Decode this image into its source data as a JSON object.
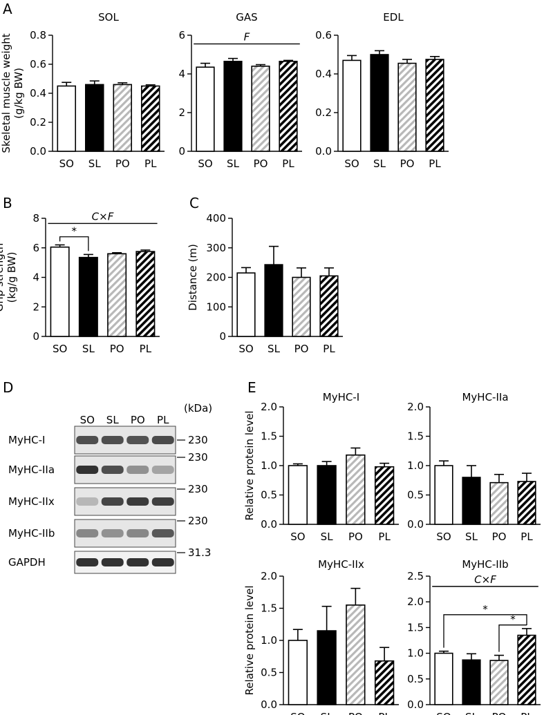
{
  "panel_labels": {
    "A": "A",
    "B": "B",
    "C": "C",
    "D": "D",
    "E": "E"
  },
  "colors": {
    "SO": "#ffffff",
    "SL": "#000000",
    "PO": "hatched-light-gray",
    "PL": "hatched-black"
  },
  "blot": {
    "lanes": [
      "SO",
      "SL",
      "PO",
      "PL"
    ],
    "unit": "(kDa)",
    "rows": [
      {
        "name": "MyHC-I",
        "marker": "230",
        "intensity": [
          0.8,
          0.8,
          0.78,
          0.82
        ]
      },
      {
        "name": "MyHC-IIa",
        "marker": "230",
        "intensity": [
          0.95,
          0.8,
          0.45,
          0.35
        ]
      },
      {
        "name": "MyHC-IIx",
        "marker": "230",
        "intensity": [
          0.25,
          0.85,
          0.9,
          0.88
        ]
      },
      {
        "name": "MyHC-IIb",
        "marker": "230",
        "intensity": [
          0.5,
          0.45,
          0.5,
          0.75
        ]
      },
      {
        "name": "GAPDH",
        "marker": "31.3",
        "intensity": [
          0.95,
          0.95,
          0.95,
          0.95
        ]
      }
    ]
  },
  "chart_data": [
    {
      "id": "A1",
      "type": "bar",
      "title": "SOL",
      "ylabel": "Skeletal muscle weight\n(g/kg BW)",
      "categories": [
        "SO",
        "SL",
        "PO",
        "PL"
      ],
      "values": [
        0.45,
        0.46,
        0.46,
        0.45
      ],
      "errors": [
        0.025,
        0.025,
        0.012,
        0.008
      ],
      "ylim": [
        0,
        0.8
      ],
      "yticks": [
        "0.0",
        "0.2",
        "0.4",
        "0.6",
        "0.8"
      ],
      "annotations": []
    },
    {
      "id": "A2",
      "type": "bar",
      "title": "GAS",
      "ylabel": "",
      "categories": [
        "SO",
        "SL",
        "PO",
        "PL"
      ],
      "values": [
        4.35,
        4.65,
        4.4,
        4.65
      ],
      "errors": [
        0.2,
        0.15,
        0.08,
        0.05
      ],
      "ylim": [
        0,
        6
      ],
      "yticks": [
        "0",
        "2",
        "4",
        "6"
      ],
      "annotations": [
        {
          "kind": "line",
          "text": "F",
          "from": 0,
          "to": 3,
          "y": 5.55
        }
      ]
    },
    {
      "id": "A3",
      "type": "bar",
      "title": "EDL",
      "ylabel": "",
      "categories": [
        "SO",
        "SL",
        "PO",
        "PL"
      ],
      "values": [
        0.47,
        0.5,
        0.455,
        0.475
      ],
      "errors": [
        0.025,
        0.02,
        0.02,
        0.015
      ],
      "ylim": [
        0,
        0.6
      ],
      "yticks": [
        "0.0",
        "0.2",
        "0.4",
        "0.6"
      ],
      "annotations": []
    },
    {
      "id": "B",
      "type": "bar",
      "title": "",
      "ylabel": "Grip strength\n(kg/g BW)",
      "categories": [
        "SO",
        "SL",
        "PO",
        "PL"
      ],
      "values": [
        6.05,
        5.35,
        5.6,
        5.75
      ],
      "errors": [
        0.15,
        0.2,
        0.07,
        0.1
      ],
      "ylim": [
        0,
        8
      ],
      "yticks": [
        "0",
        "2",
        "4",
        "6",
        "8"
      ],
      "annotations": [
        {
          "kind": "line",
          "text": "C×F",
          "from": 0,
          "to": 3,
          "y": 7.65
        },
        {
          "kind": "bracket",
          "text": "*",
          "from": 0,
          "to": 1,
          "y": 6.75
        }
      ]
    },
    {
      "id": "C",
      "type": "bar",
      "title": "",
      "ylabel": "Distance (m)",
      "categories": [
        "SO",
        "SL",
        "PO",
        "PL"
      ],
      "values": [
        215,
        243,
        200,
        205
      ],
      "errors": [
        18,
        62,
        32,
        27
      ],
      "ylim": [
        0,
        400
      ],
      "yticks": [
        "0",
        "100",
        "200",
        "300",
        "400"
      ],
      "annotations": []
    },
    {
      "id": "E1",
      "type": "bar",
      "title": "MyHC-I",
      "ylabel": "Relative protein level",
      "categories": [
        "SO",
        "SL",
        "PO",
        "PL"
      ],
      "values": [
        1.0,
        1.0,
        1.18,
        0.98
      ],
      "errors": [
        0.03,
        0.07,
        0.12,
        0.06
      ],
      "ylim": [
        0,
        2
      ],
      "yticks": [
        "0.0",
        "0.5",
        "1.0",
        "1.5",
        "2.0"
      ],
      "annotations": []
    },
    {
      "id": "E2",
      "type": "bar",
      "title": "MyHC-IIa",
      "ylabel": "",
      "categories": [
        "SO",
        "SL",
        "PO",
        "PL"
      ],
      "values": [
        1.0,
        0.8,
        0.71,
        0.73
      ],
      "errors": [
        0.08,
        0.2,
        0.14,
        0.14
      ],
      "ylim": [
        0,
        2
      ],
      "yticks": [
        "0.0",
        "0.5",
        "1.0",
        "1.5",
        "2.0"
      ],
      "annotations": []
    },
    {
      "id": "E3",
      "type": "bar",
      "title": "MyHC-IIx",
      "ylabel": "Relative protein level",
      "categories": [
        "SO",
        "SL",
        "PO",
        "PL"
      ],
      "values": [
        1.0,
        1.15,
        1.55,
        0.68
      ],
      "errors": [
        0.17,
        0.38,
        0.26,
        0.21
      ],
      "ylim": [
        0,
        2
      ],
      "yticks": [
        "0.0",
        "0.5",
        "1.0",
        "1.5",
        "2.0"
      ],
      "annotations": []
    },
    {
      "id": "E4",
      "type": "bar",
      "title": "MyHC-IIb",
      "ylabel": "",
      "categories": [
        "SO",
        "SL",
        "PO",
        "PL"
      ],
      "values": [
        1.0,
        0.87,
        0.86,
        1.35
      ],
      "errors": [
        0.04,
        0.12,
        0.1,
        0.13
      ],
      "ylim": [
        0,
        2.5
      ],
      "yticks": [
        "0.0",
        "0.5",
        "1.0",
        "1.5",
        "2.0",
        "2.5"
      ],
      "annotations": [
        {
          "kind": "line",
          "text": "C×F",
          "from": 0,
          "to": 3,
          "y": 2.3
        },
        {
          "kind": "bracket",
          "text": "*",
          "from": 0,
          "to": 3,
          "y": 1.75
        },
        {
          "kind": "bracket",
          "text": "*",
          "from": 2,
          "to": 3,
          "y": 1.55
        }
      ]
    }
  ]
}
